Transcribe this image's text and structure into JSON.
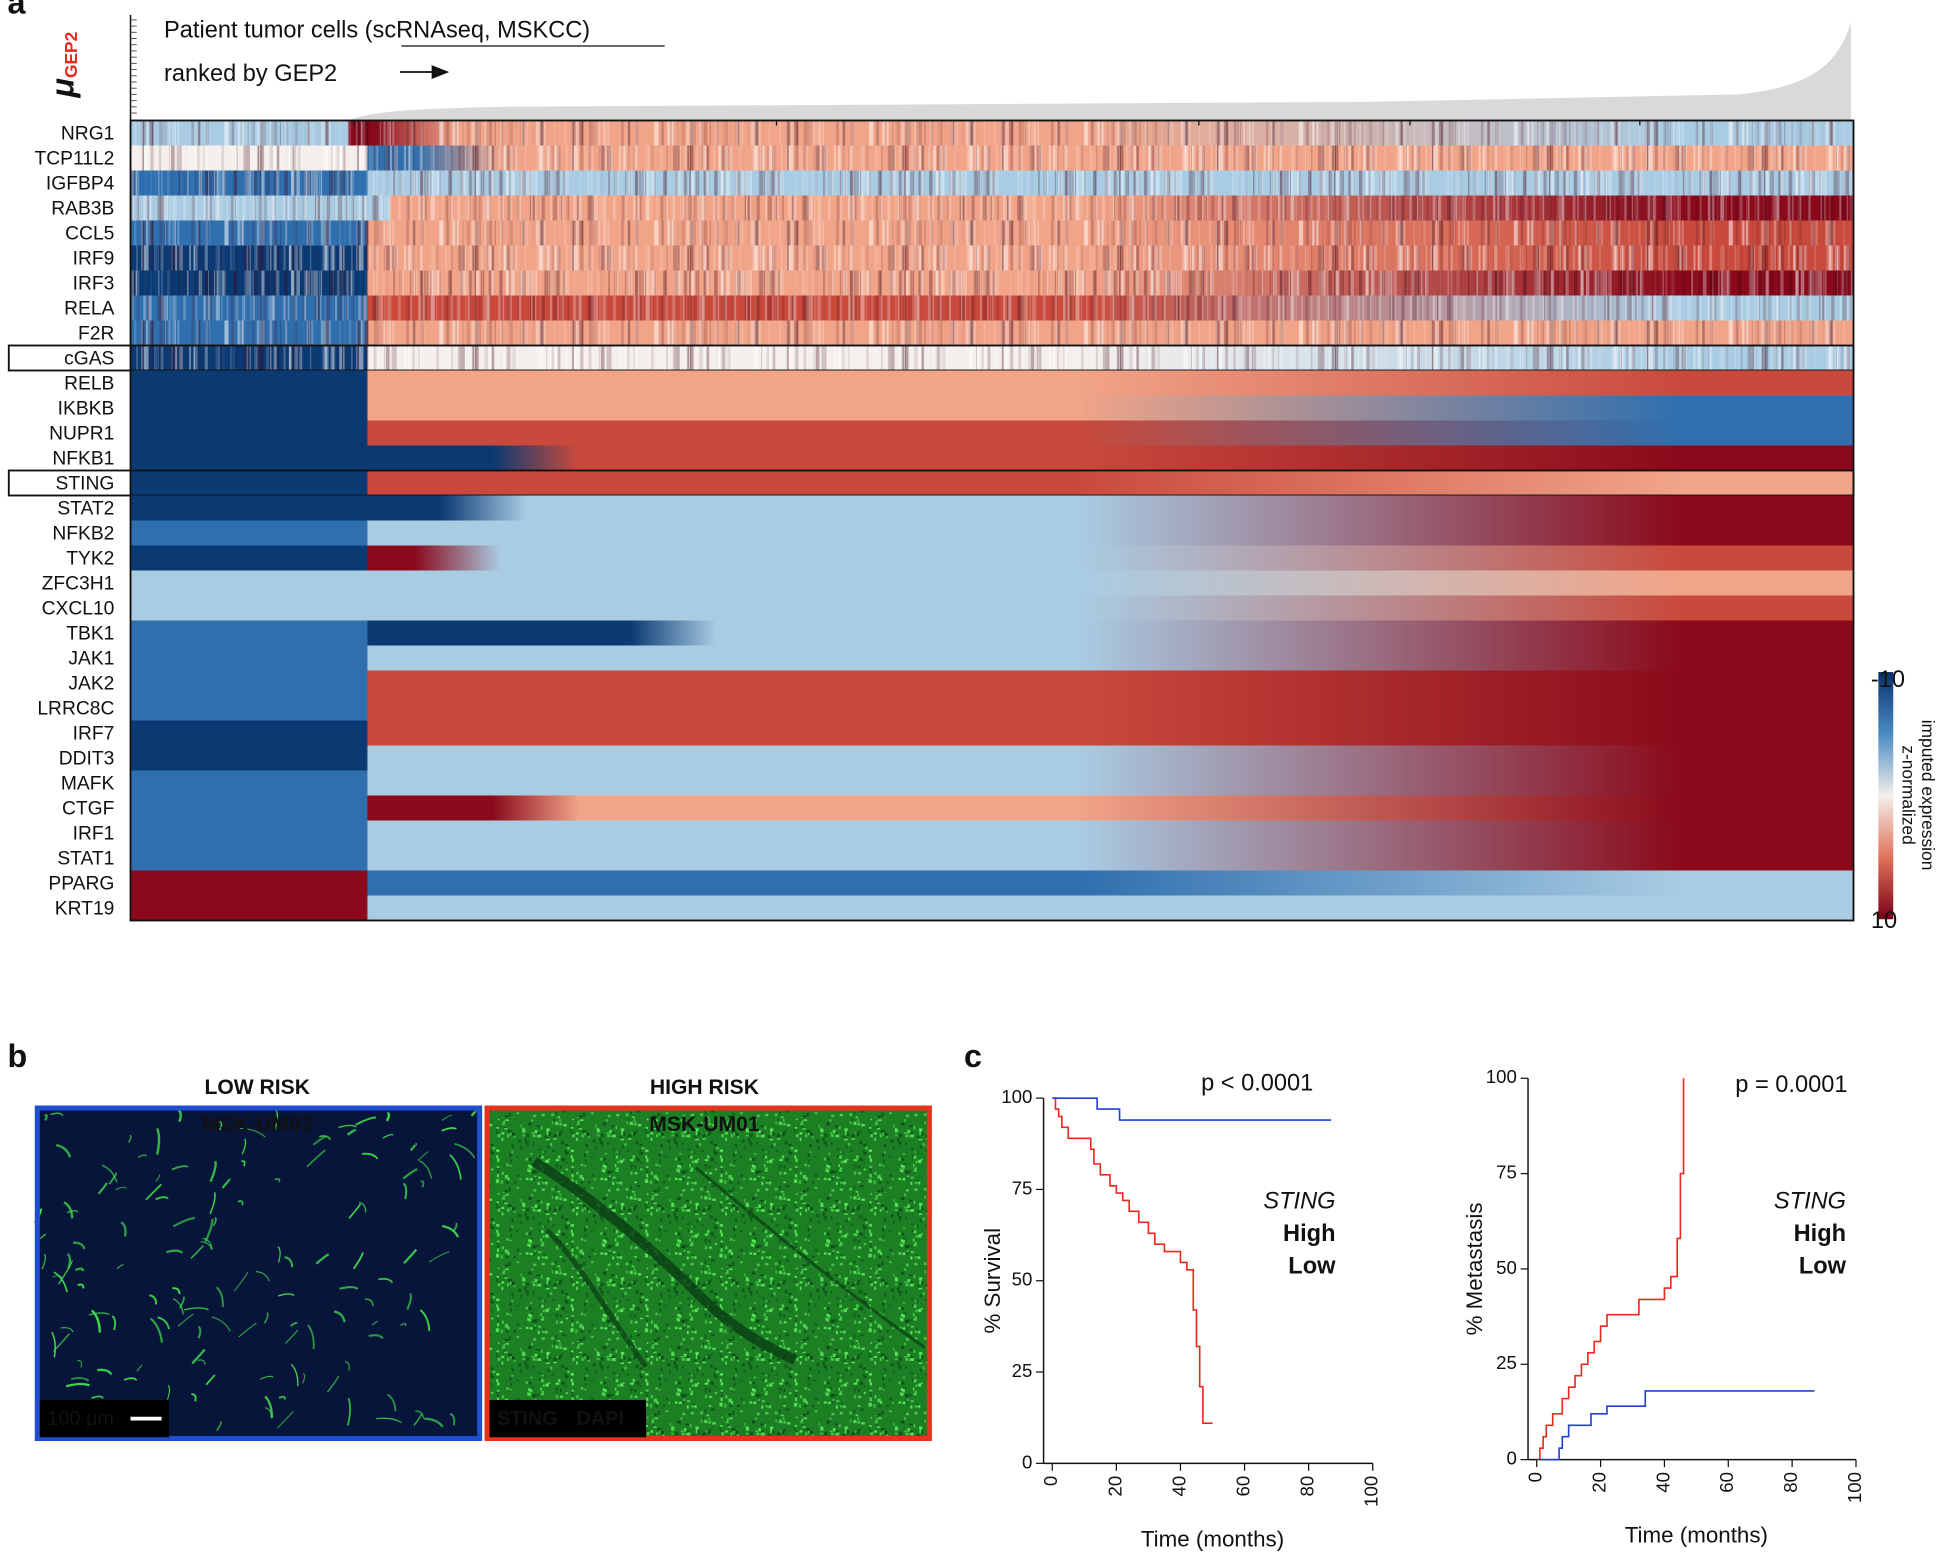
{
  "panel_labels": [
    "a",
    "b",
    "c"
  ],
  "heatmap": {
    "title_line1": "Patient tumor cells (scRNAseq, MSKCC)",
    "title_line2": "ranked by GEP2",
    "y_label_symbol": "μ",
    "y_label_subscript": "GEP2",
    "genes": [
      {
        "name": "NRG1",
        "color": "#e8291c"
      },
      {
        "name": "TCP11L2",
        "color": "#e8291c"
      },
      {
        "name": "IGFBP4",
        "color": "#e8291c"
      },
      {
        "name": "RAB3B",
        "color": "#e8291c"
      },
      {
        "name": "CCL5",
        "color": "#111111"
      },
      {
        "name": "IRF9",
        "color": "#111111"
      },
      {
        "name": "IRF3",
        "color": "#111111"
      },
      {
        "name": "RELA",
        "color": "#111111"
      },
      {
        "name": "F2R",
        "color": "#e8291c"
      },
      {
        "name": "cGAS",
        "color": "#111111",
        "boxed": true
      },
      {
        "name": "RELB",
        "color": "#111111"
      },
      {
        "name": "IKBKB",
        "color": "#111111"
      },
      {
        "name": "NUPR1",
        "color": "#e8291c"
      },
      {
        "name": "NFKB1",
        "color": "#111111"
      },
      {
        "name": "STING",
        "color": "#111111",
        "boxed": true
      },
      {
        "name": "STAT2",
        "color": "#111111"
      },
      {
        "name": "NFKB2",
        "color": "#111111"
      },
      {
        "name": "TYK2",
        "color": "#111111"
      },
      {
        "name": "ZFC3H1",
        "color": "#e8291c"
      },
      {
        "name": "CXCL10",
        "color": "#111111"
      },
      {
        "name": "TBK1",
        "color": "#111111"
      },
      {
        "name": "JAK1",
        "color": "#111111"
      },
      {
        "name": "JAK2",
        "color": "#111111"
      },
      {
        "name": "LRRC8C",
        "color": "#e8291c"
      },
      {
        "name": "IRF7",
        "color": "#111111"
      },
      {
        "name": "DDIT3",
        "color": "#e8291c"
      },
      {
        "name": "MAFK",
        "color": "#e8291c"
      },
      {
        "name": "CTGF",
        "color": "#e8291c"
      },
      {
        "name": "IRF1",
        "color": "#111111"
      },
      {
        "name": "STAT1",
        "color": "#111111"
      },
      {
        "name": "PPARG",
        "color": "#e8291c"
      },
      {
        "name": "KRT19",
        "color": "#e8291c"
      }
    ],
    "colorbar": {
      "ticks": [
        -10,
        10
      ],
      "label_lines": [
        "z-normalized",
        "imputed expression"
      ]
    }
  },
  "images": {
    "left": {
      "risk": "LOW RISK",
      "risk_color": "#1f3fd6",
      "sample": "MSK-UM03",
      "scale_bar": "100 μm"
    },
    "right": {
      "risk": "HIGH RISK",
      "risk_color": "#e8321e",
      "sample": "MSK-UM01",
      "channels": [
        {
          "name": "STING",
          "color": "#2ee02e"
        },
        {
          "name": "DAPI",
          "color": "#3a5cff"
        }
      ]
    }
  },
  "chart_data": [
    {
      "type": "step",
      "x_label": "Time (months)",
      "y_label": "% Survival",
      "annotation": "p < 0.0001",
      "legend_title": "STING",
      "xlim": [
        0,
        100
      ],
      "xticks": [
        0,
        20,
        40,
        60,
        80,
        100
      ],
      "ylim": [
        0,
        100
      ],
      "yticks": [
        0,
        25,
        50,
        75,
        100
      ],
      "series": [
        {
          "name": "High",
          "color": "#e8291c",
          "x": [
            0,
            1,
            2,
            3,
            5,
            12,
            13,
            15,
            18,
            20,
            22,
            24,
            27,
            30,
            32,
            35,
            40,
            42,
            44,
            45,
            46,
            47,
            50
          ],
          "values": [
            100,
            97,
            95,
            92,
            89,
            86,
            82,
            79,
            76,
            74,
            72,
            69,
            66,
            63,
            60,
            58,
            55,
            53,
            42,
            32,
            21,
            11,
            11
          ]
        },
        {
          "name": "Low",
          "color": "#1f3fd6",
          "x": [
            0,
            14,
            21,
            87
          ],
          "values": [
            100,
            97,
            94,
            94
          ]
        }
      ]
    },
    {
      "type": "step",
      "x_label": "Time (months)",
      "y_label": "% Metastasis",
      "annotation": "p = 0.0001",
      "legend_title": "STING",
      "xlim": [
        0,
        100
      ],
      "xticks": [
        0,
        20,
        40,
        60,
        80,
        100
      ],
      "ylim": [
        0,
        100
      ],
      "yticks": [
        0,
        25,
        50,
        75,
        100
      ],
      "series": [
        {
          "name": "High",
          "color": "#e8291c",
          "x": [
            0,
            1,
            2,
            3,
            5,
            8,
            10,
            12,
            14,
            16,
            18,
            20,
            22,
            30,
            32,
            38,
            40,
            42,
            44,
            45,
            46
          ],
          "values": [
            0,
            3,
            6,
            9,
            12,
            16,
            19,
            22,
            25,
            28,
            31,
            35,
            38,
            38,
            42,
            42,
            45,
            48,
            58,
            75,
            100
          ]
        },
        {
          "name": "Low",
          "color": "#1f3fd6",
          "x": [
            0,
            7,
            8,
            10,
            17,
            22,
            34,
            87
          ],
          "values": [
            0,
            3,
            6,
            9,
            12,
            14,
            18,
            18
          ]
        }
      ]
    }
  ]
}
